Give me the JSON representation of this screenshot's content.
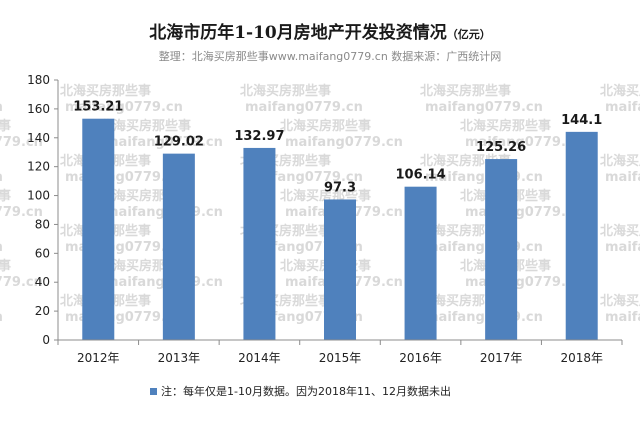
{
  "chart_data": {
    "type": "bar",
    "title": "北海市历年1-10月房地产开发投资情况",
    "title_unit": "（亿元）",
    "subtitle": "整理：北海买房那些事www.maifang0779.cn   数据来源：广西统计网",
    "categories": [
      "2012年",
      "2013年",
      "2014年",
      "2015年",
      "2016年",
      "2017年",
      "2018年"
    ],
    "values": [
      153.21,
      129.02,
      132.97,
      97.3,
      106.14,
      125.26,
      144.1
    ],
    "value_labels": [
      "153.21",
      "129.02",
      "132.97",
      "97.3",
      "106.14",
      "125.26",
      "144.1"
    ],
    "ylim": [
      0,
      180
    ],
    "yticks": [
      "0",
      "20",
      "40",
      "60",
      "80",
      "100",
      "120",
      "140",
      "160",
      "180"
    ],
    "xlabel": "",
    "ylabel": "",
    "grid": false,
    "bar_color": "#4f81bd",
    "legend": {
      "position": "bottom",
      "text": "注：每年仅是1-10月数据。因为2018年11、12月数据未出"
    },
    "watermark": {
      "line1": "北海买房那些事",
      "line2": "maifang0779.cn"
    }
  }
}
